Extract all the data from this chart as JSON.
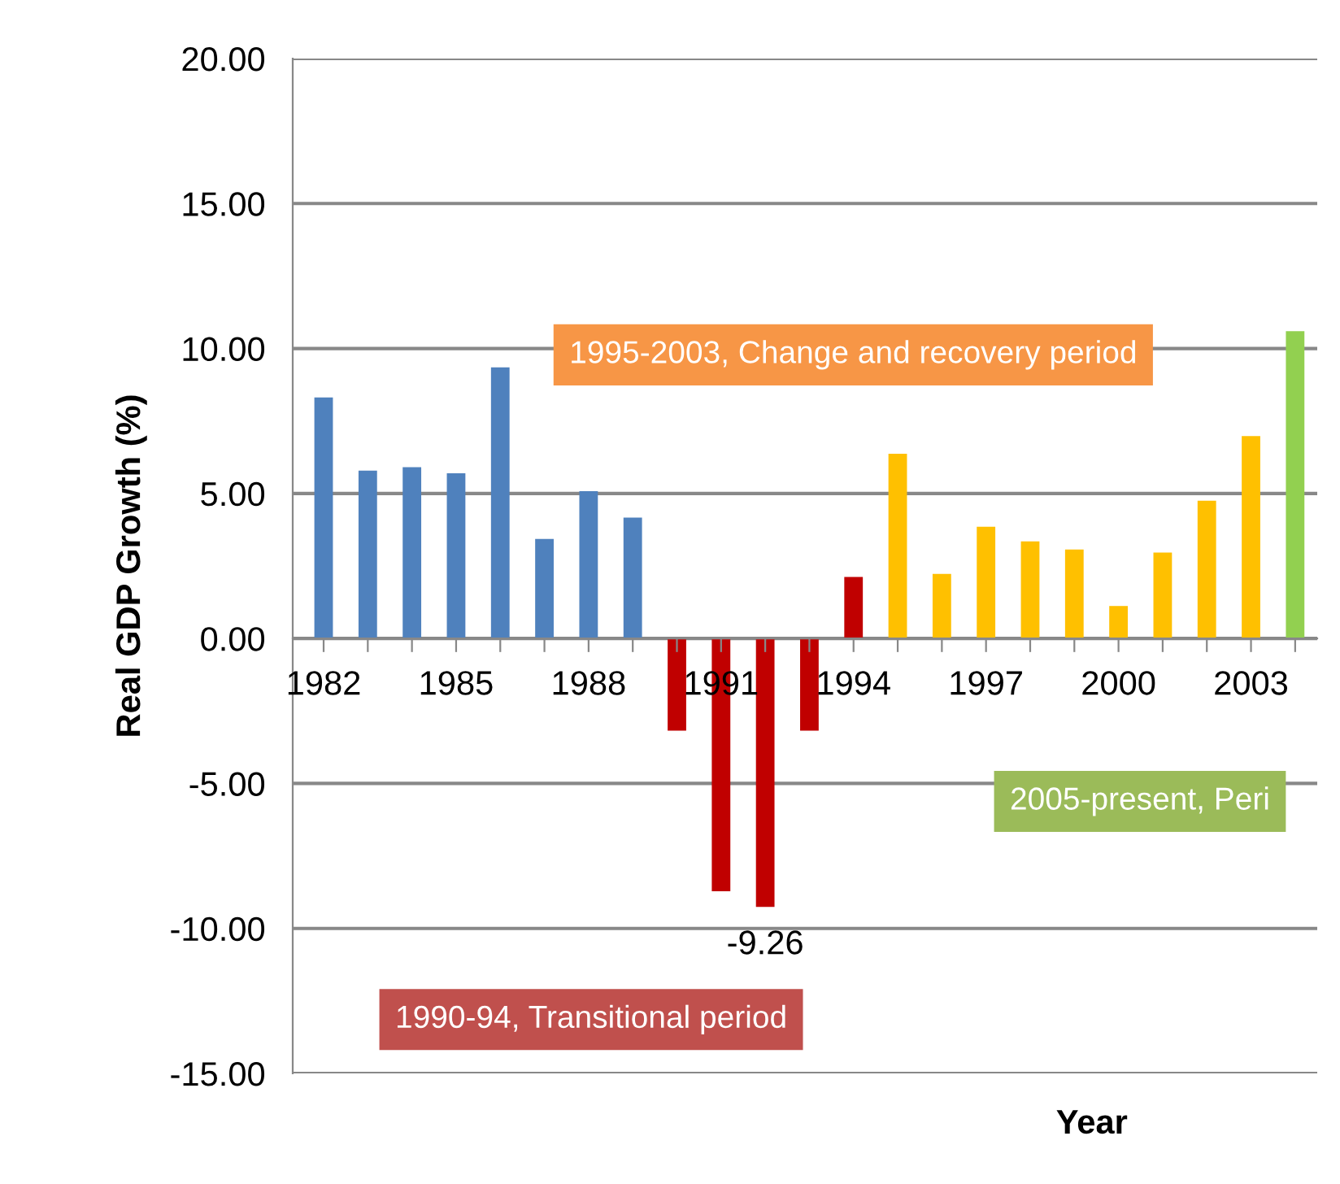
{
  "chart_data": {
    "type": "bar",
    "xlabel": "Year",
    "ylabel": "Real GDP Growth (%)",
    "categories": [
      "1982",
      null,
      null,
      "1985",
      null,
      null,
      "1988",
      null,
      null,
      "1991",
      null,
      null,
      "1994",
      null,
      null,
      "1997",
      null,
      null,
      "2000",
      null,
      null,
      "2003",
      null
    ],
    "values": [
      8.31,
      5.79,
      5.91,
      5.7,
      9.35,
      3.43,
      5.08,
      4.17,
      -3.18,
      -8.72,
      -9.26,
      -3.18,
      2.12,
      6.37,
      2.23,
      3.85,
      3.35,
      3.07,
      1.12,
      2.96,
      4.75,
      6.98,
      10.6
    ],
    "colors": [
      "#4f81bd",
      "#4f81bd",
      "#4f81bd",
      "#4f81bd",
      "#4f81bd",
      "#4f81bd",
      "#4f81bd",
      "#4f81bd",
      "#c00000",
      "#c00000",
      "#c00000",
      "#c00000",
      "#c00000",
      "#ffc000",
      "#ffc000",
      "#ffc000",
      "#ffc000",
      "#ffc000",
      "#ffc000",
      "#ffc000",
      "#ffc000",
      "#ffc000",
      "#92d050"
    ],
    "value_labels": [
      null,
      null,
      null,
      null,
      null,
      null,
      null,
      null,
      null,
      null,
      "-9.26",
      null,
      null,
      null,
      null,
      null,
      null,
      null,
      null,
      null,
      null,
      null,
      null
    ],
    "ylim": [
      -15,
      20
    ],
    "yticks": [
      {
        "value": -15,
        "label": "-15.00"
      },
      {
        "value": -10,
        "label": "-10.00"
      },
      {
        "value": -5,
        "label": "-5.00"
      },
      {
        "value": 0,
        "label": "0.00"
      },
      {
        "value": 5,
        "label": "5.00"
      },
      {
        "value": 10,
        "label": "10.00"
      },
      {
        "value": 15,
        "label": "15.00"
      },
      {
        "value": 20,
        "label": "20.00"
      }
    ],
    "grid": "y",
    "annotations": [
      "1995-2003, Change and recovery period",
      "1990-94, Transitional period",
      "2005-present, Peri"
    ]
  }
}
